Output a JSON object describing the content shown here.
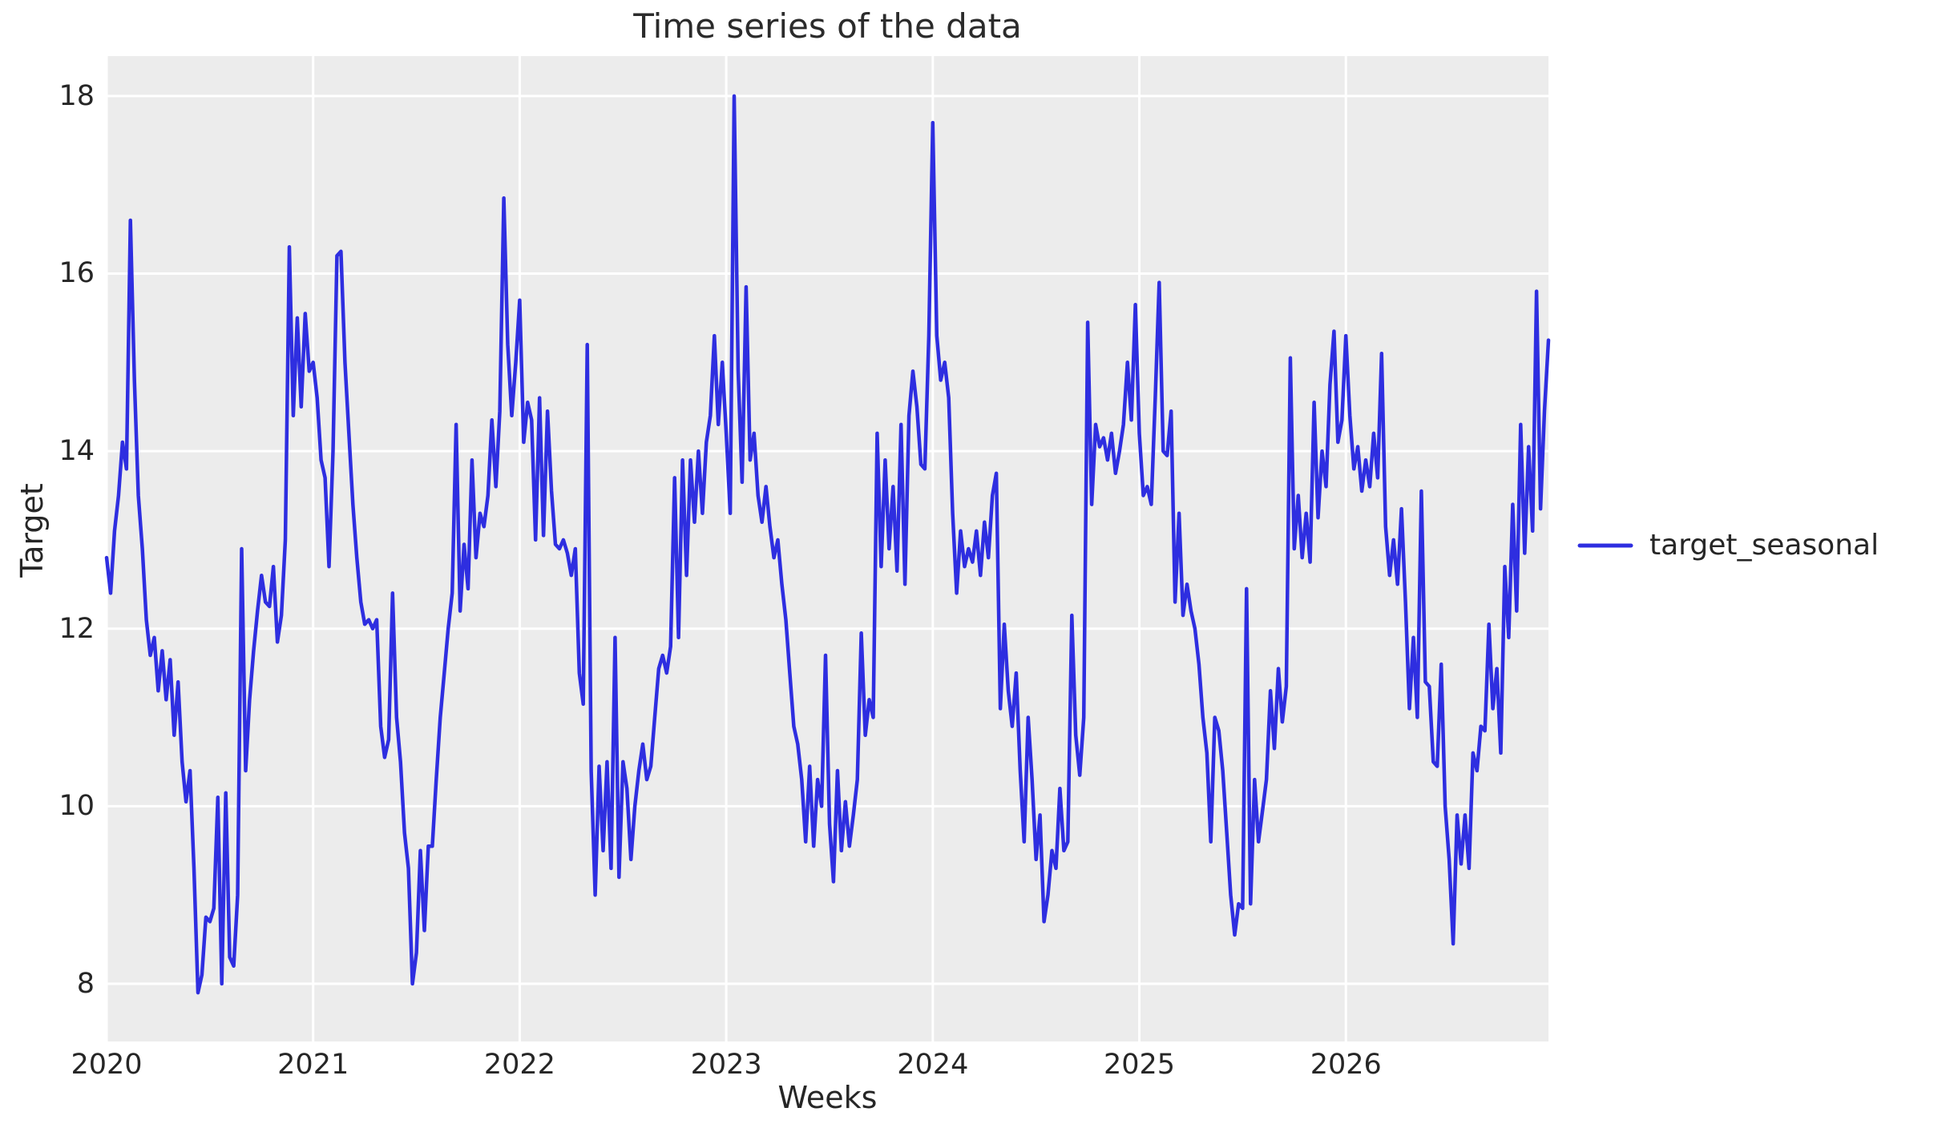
{
  "colors": {
    "plot_background": "#ececec",
    "gridline": "#ffffff",
    "line": "#2e2ee0",
    "text": "#262626"
  },
  "chart_data": {
    "type": "line",
    "title": "Time series of the data",
    "xlabel": "Weeks",
    "ylabel": "Target",
    "grid": true,
    "legend_position": "center right, outside axes",
    "x_ticks": [
      2020,
      2021,
      2022,
      2023,
      2024,
      2025,
      2026
    ],
    "y_ticks": [
      8,
      10,
      12,
      14,
      16,
      18
    ],
    "xlim": [
      2020.0,
      2026.9808
    ],
    "ylim": [
      7.35,
      18.45
    ],
    "x_unit": "weekly points, 52 per year, from 2020 through end of 2026",
    "x_start_year": 2020,
    "points_per_year": 52,
    "series": [
      {
        "name": "target_seasonal",
        "color": "#2e2ee0",
        "values": [
          12.8,
          12.4,
          13.1,
          13.5,
          14.1,
          13.8,
          16.6,
          14.8,
          13.5,
          12.9,
          12.1,
          11.7,
          11.9,
          11.3,
          11.75,
          11.2,
          11.65,
          10.8,
          11.4,
          10.5,
          10.05,
          10.4,
          9.3,
          7.9,
          8.1,
          8.75,
          8.7,
          8.85,
          10.1,
          8.0,
          10.15,
          8.3,
          8.2,
          9.0,
          12.9,
          10.4,
          11.2,
          11.75,
          12.2,
          12.6,
          12.3,
          12.25,
          12.7,
          11.85,
          12.15,
          13.0,
          16.3,
          14.4,
          15.5,
          14.5,
          15.55,
          14.9,
          15.0,
          14.6,
          13.9,
          13.7,
          12.7,
          14.0,
          16.2,
          16.25,
          15.0,
          14.2,
          13.4,
          12.8,
          12.3,
          12.05,
          12.1,
          12.0,
          12.1,
          10.9,
          10.55,
          10.75,
          12.4,
          11.0,
          10.5,
          9.7,
          9.3,
          8.0,
          8.35,
          9.5,
          8.6,
          9.55,
          9.55,
          10.3,
          11.0,
          11.5,
          12.0,
          12.4,
          14.3,
          12.2,
          12.95,
          12.45,
          13.9,
          12.8,
          13.3,
          13.15,
          13.5,
          14.35,
          13.6,
          14.45,
          16.85,
          15.2,
          14.4,
          15.0,
          15.7,
          14.1,
          14.55,
          14.35,
          13.0,
          14.6,
          13.05,
          14.45,
          13.55,
          12.95,
          12.9,
          13.0,
          12.85,
          12.6,
          12.9,
          11.5,
          11.15,
          15.2,
          10.4,
          9.0,
          10.45,
          9.5,
          10.5,
          9.3,
          11.9,
          9.2,
          10.5,
          10.2,
          9.4,
          10.0,
          10.4,
          10.7,
          10.3,
          10.45,
          11.0,
          11.55,
          11.7,
          11.5,
          11.8,
          13.7,
          11.9,
          13.9,
          12.6,
          13.9,
          13.2,
          14.0,
          13.3,
          14.1,
          14.4,
          15.3,
          14.3,
          15.0,
          14.2,
          13.3,
          18.0,
          14.9,
          13.65,
          15.85,
          13.9,
          14.2,
          13.5,
          13.2,
          13.6,
          13.15,
          12.8,
          13.0,
          12.5,
          12.1,
          11.5,
          10.9,
          10.7,
          10.3,
          9.6,
          10.45,
          9.55,
          10.3,
          10.0,
          11.7,
          9.8,
          9.15,
          10.4,
          9.5,
          10.05,
          9.55,
          9.9,
          10.3,
          11.95,
          10.8,
          11.2,
          11.0,
          14.2,
          12.7,
          13.9,
          12.9,
          13.6,
          12.65,
          14.3,
          12.5,
          14.4,
          14.9,
          14.5,
          13.85,
          13.8,
          15.3,
          17.7,
          15.3,
          14.8,
          15.0,
          14.6,
          13.3,
          12.4,
          13.1,
          12.7,
          12.9,
          12.75,
          13.1,
          12.6,
          13.2,
          12.8,
          13.5,
          13.75,
          11.1,
          12.05,
          11.3,
          10.9,
          11.5,
          10.4,
          9.6,
          11.0,
          10.3,
          9.4,
          9.9,
          8.7,
          9.0,
          9.5,
          9.3,
          10.2,
          9.5,
          9.6,
          12.15,
          10.8,
          10.35,
          11.0,
          15.45,
          13.4,
          14.3,
          14.05,
          14.15,
          13.9,
          14.2,
          13.75,
          14.0,
          14.3,
          15.0,
          14.35,
          15.65,
          14.2,
          13.5,
          13.6,
          13.4,
          14.6,
          15.9,
          14.0,
          13.95,
          14.45,
          12.3,
          13.3,
          12.15,
          12.5,
          12.2,
          12.0,
          11.6,
          11.0,
          10.6,
          9.6,
          11.0,
          10.85,
          10.4,
          9.7,
          9.0,
          8.55,
          8.9,
          8.85,
          12.45,
          8.9,
          10.3,
          9.6,
          9.95,
          10.3,
          11.3,
          10.65,
          11.55,
          10.95,
          11.35,
          15.05,
          12.9,
          13.5,
          12.8,
          13.3,
          12.75,
          14.55,
          13.25,
          14.0,
          13.6,
          14.75,
          15.35,
          14.1,
          14.35,
          15.3,
          14.4,
          13.8,
          14.05,
          13.55,
          13.9,
          13.6,
          14.2,
          13.7,
          15.1,
          13.15,
          12.6,
          13.0,
          12.5,
          13.35,
          12.3,
          11.1,
          11.9,
          11.0,
          13.55,
          11.4,
          11.35,
          10.5,
          10.45,
          11.6,
          10.0,
          9.4,
          8.45,
          9.9,
          9.35,
          9.9,
          9.3,
          10.6,
          10.4,
          10.9,
          10.85,
          12.05,
          11.1,
          11.55,
          10.6,
          12.7,
          11.9,
          13.4,
          12.2,
          14.3,
          12.85,
          14.05,
          13.1,
          15.8,
          13.35,
          14.45,
          15.25
        ]
      }
    ]
  }
}
